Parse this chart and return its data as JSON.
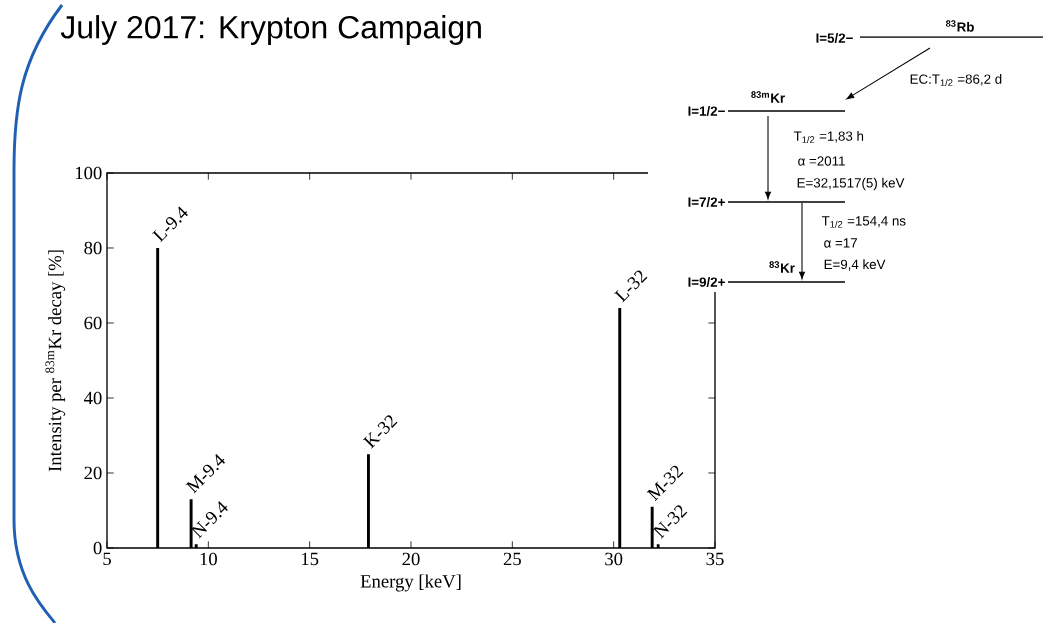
{
  "chart_data": {
    "type": "bar",
    "title": "July 2017: Krypton Campaign",
    "xlabel": "Energy [keV]",
    "ylabel": "Intensity per $^{83m}$Kr decay [%]",
    "x": [
      7.5,
      9.15,
      9.4,
      17.9,
      30.3,
      31.9,
      32.2
    ],
    "values": [
      80,
      13,
      1,
      25,
      64,
      11,
      1
    ],
    "color": "#000000",
    "xlim": [
      5,
      35
    ],
    "xticks": [
      5,
      10,
      15,
      20,
      25,
      30,
      35
    ],
    "ylim": [
      0,
      100
    ],
    "yticks": [
      0,
      20,
      40,
      60,
      80,
      100
    ],
    "grid": false,
    "annotations": [
      {
        "text": "L-9.4",
        "x": 7.5,
        "y": 80
      },
      {
        "text": "M-9.4",
        "x": 9.15,
        "y": 13
      },
      {
        "text": "N-9.4",
        "x": 9.4,
        "y": 1
      },
      {
        "text": "K-32",
        "x": 17.9,
        "y": 25
      },
      {
        "text": "L-32",
        "x": 30.3,
        "y": 64
      },
      {
        "text": "M-32",
        "x": 31.9,
        "y": 11
      },
      {
        "text": "N-32",
        "x": 32.2,
        "y": 1
      },
      "$^{83}$Rb",
      "I=5/2−",
      "EC:T$_{1/2}$ =86,2 d",
      "$^{83m}$Kr",
      "I=1/2−",
      "T$_{1/2}$ =1,83 h",
      "α =2011",
      "E=32,1517(5) keV",
      "I=7/2+",
      "T$_{1/2}$ =154,4 ns",
      "α =17",
      "E=9,4 keV",
      "$^{83}$Kr",
      "I=9/2+"
    ]
  }
}
